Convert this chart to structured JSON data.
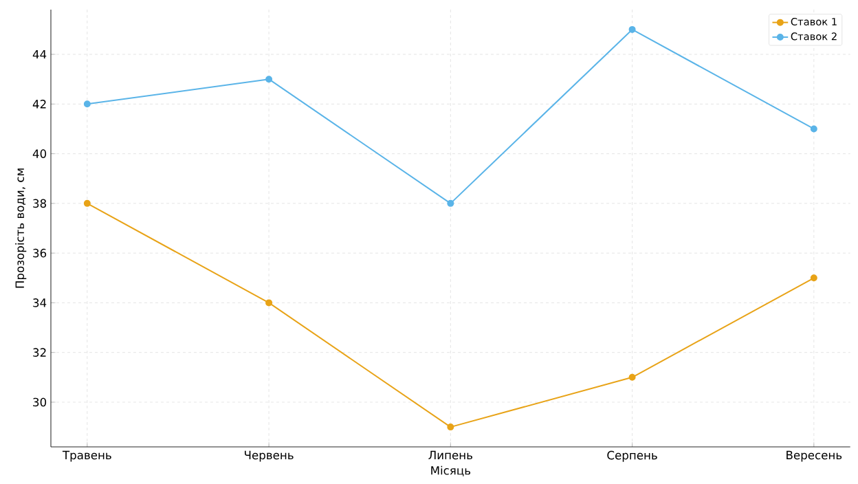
{
  "chart_data": {
    "type": "line",
    "xlabel": "Місяць",
    "ylabel": "Прозорість води, см",
    "categories": [
      "Травень",
      "Червень",
      "Липень",
      "Серпень",
      "Вересень"
    ],
    "series": [
      {
        "name": "Ставок 1",
        "color": "#e8a317",
        "values": [
          38,
          34,
          29,
          31,
          35
        ]
      },
      {
        "name": "Ставок 2",
        "color": "#5ab4e8",
        "values": [
          42,
          43,
          38,
          45,
          41
        ]
      }
    ],
    "ylim": [
      28.2,
      45.8
    ],
    "yticks": [
      30,
      32,
      34,
      36,
      38,
      40,
      42,
      44
    ],
    "grid": true,
    "legend": "top right",
    "marker": "circle",
    "line_style": "solid"
  }
}
